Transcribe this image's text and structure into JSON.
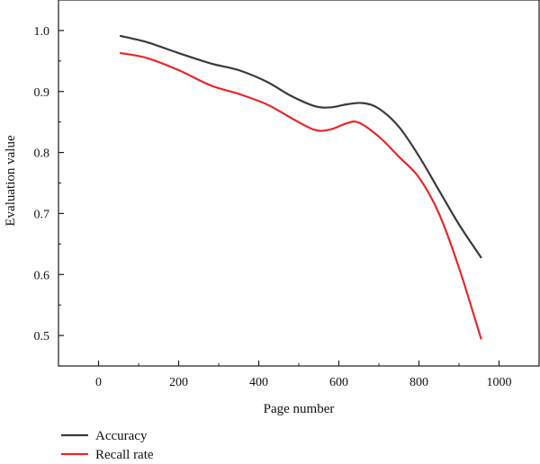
{
  "chart_data": {
    "type": "line",
    "xlabel": "Page number",
    "ylabel": "Evaluation value",
    "xlim": [
      -100,
      1100
    ],
    "ylim": [
      0.45,
      1.05
    ],
    "xticks": [
      0,
      200,
      400,
      600,
      800,
      1000
    ],
    "xtick_labels": [
      "0",
      "200",
      "400",
      "600",
      "800",
      "1000"
    ],
    "yticks": [
      0.5,
      0.6,
      0.7,
      0.8,
      0.9,
      1.0
    ],
    "ytick_labels": [
      "0.5",
      "0.6",
      "0.7",
      "0.8",
      "0.9",
      "1.0"
    ],
    "grid": false,
    "legend_position": "bottom-left",
    "series": [
      {
        "name": "Accuracy",
        "color": "#3a3a3a",
        "x": [
          55,
          120,
          200,
          280,
          350,
          420,
          480,
          540,
          580,
          620,
          660,
          700,
          750,
          800,
          850,
          900,
          955
        ],
        "y": [
          0.991,
          0.981,
          0.963,
          0.946,
          0.935,
          0.916,
          0.893,
          0.876,
          0.874,
          0.879,
          0.881,
          0.872,
          0.842,
          0.794,
          0.738,
          0.682,
          0.628
        ]
      },
      {
        "name": "Recall rate",
        "color": "#e8262a",
        "x": [
          55,
          120,
          200,
          280,
          350,
          420,
          480,
          540,
          580,
          620,
          650,
          700,
          750,
          800,
          850,
          900,
          955
        ],
        "y": [
          0.963,
          0.955,
          0.935,
          0.91,
          0.896,
          0.879,
          0.857,
          0.837,
          0.838,
          0.848,
          0.849,
          0.826,
          0.793,
          0.759,
          0.7,
          0.611,
          0.495
        ]
      }
    ]
  }
}
